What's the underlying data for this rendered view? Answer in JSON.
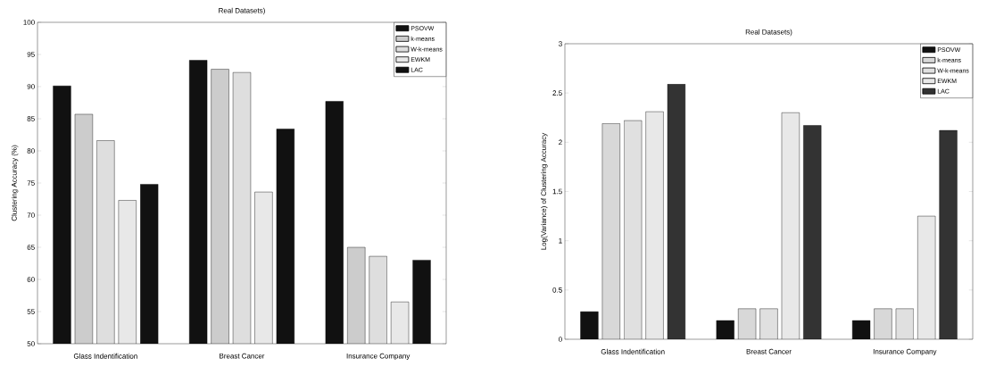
{
  "chart_data": [
    {
      "type": "bar",
      "title": "Real Datasets)",
      "ylabel": "Clustering Accuracy (%)",
      "categories": [
        "Glass Indentification",
        "Breast Cancer",
        "Insurance Company"
      ],
      "series": [
        {
          "name": "PSOVW",
          "color": "#111111",
          "values": [
            90.1,
            94.1,
            87.7
          ]
        },
        {
          "name": "k-means",
          "color": "#cccccc",
          "values": [
            85.7,
            92.7,
            65.0
          ]
        },
        {
          "name": "W-k-means",
          "color": "#dedede",
          "values": [
            81.6,
            92.2,
            63.6
          ]
        },
        {
          "name": "EWKM",
          "color": "#e8e8e8",
          "values": [
            72.3,
            73.6,
            56.5
          ]
        },
        {
          "name": "LAC",
          "color": "#111111",
          "values": [
            74.8,
            83.4,
            63.0
          ]
        }
      ],
      "ylim": [
        50,
        100
      ],
      "yticks": [
        50,
        55,
        60,
        65,
        70,
        75,
        80,
        85,
        90,
        95,
        100
      ],
      "legend": "top right"
    },
    {
      "type": "bar",
      "title": "Real Datasets)",
      "ylabel": "Log(Variance) of Clustering Accuracy",
      "categories": [
        "Glass Indentification",
        "Breast Cancer",
        "Insurance Company"
      ],
      "series": [
        {
          "name": "PSOVW",
          "color": "#111111",
          "values": [
            0.28,
            0.19,
            0.19
          ]
        },
        {
          "name": "k-means",
          "color": "#d8d8d8",
          "values": [
            2.19,
            0.31,
            0.31
          ]
        },
        {
          "name": "W-k-means",
          "color": "#e0e0e0",
          "values": [
            2.22,
            0.31,
            0.31
          ]
        },
        {
          "name": "EWKM",
          "color": "#e8e8e8",
          "values": [
            2.31,
            2.3,
            1.25
          ]
        },
        {
          "name": "LAC",
          "color": "#333333",
          "values": [
            2.59,
            2.17,
            2.12
          ]
        }
      ],
      "ylim": [
        0,
        3
      ],
      "yticks": [
        0,
        0.5,
        1,
        1.5,
        2,
        2.5,
        3
      ],
      "legend": "top right"
    }
  ]
}
